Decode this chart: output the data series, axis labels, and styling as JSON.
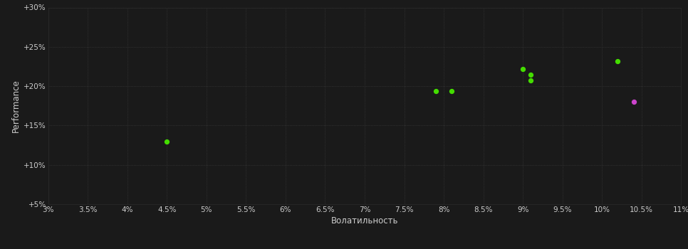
{
  "background_color": "#1a1a1a",
  "grid_color": "#404040",
  "text_color": "#cccccc",
  "xlabel": "Волатильность",
  "ylabel": "Performance",
  "xlim": [
    0.03,
    0.11
  ],
  "ylim": [
    0.05,
    0.3
  ],
  "xticks": [
    0.03,
    0.035,
    0.04,
    0.045,
    0.05,
    0.055,
    0.06,
    0.065,
    0.07,
    0.075,
    0.08,
    0.085,
    0.09,
    0.095,
    0.1,
    0.105,
    0.11
  ],
  "xtick_labels": [
    "3%",
    "3.5%",
    "4%",
    "4.5%",
    "5%",
    "5.5%",
    "6%",
    "6.5%",
    "7%",
    "7.5%",
    "8%",
    "8.5%",
    "9%",
    "9.5%",
    "10%",
    "10.5%",
    "11%"
  ],
  "yticks": [
    0.05,
    0.1,
    0.15,
    0.2,
    0.25,
    0.3
  ],
  "ytick_labels": [
    "+5%",
    "+10%",
    "+15%",
    "+20%",
    "+25%",
    "+30%"
  ],
  "green_points": [
    [
      0.045,
      0.13
    ],
    [
      0.079,
      0.194
    ],
    [
      0.081,
      0.194
    ],
    [
      0.09,
      0.222
    ],
    [
      0.091,
      0.215
    ],
    [
      0.091,
      0.207
    ],
    [
      0.102,
      0.232
    ]
  ],
  "magenta_points": [
    [
      0.104,
      0.18
    ]
  ],
  "green_color": "#44dd00",
  "magenta_color": "#cc44cc",
  "point_size": 18,
  "font_size_ticks": 7.5,
  "font_size_labels": 8.5
}
